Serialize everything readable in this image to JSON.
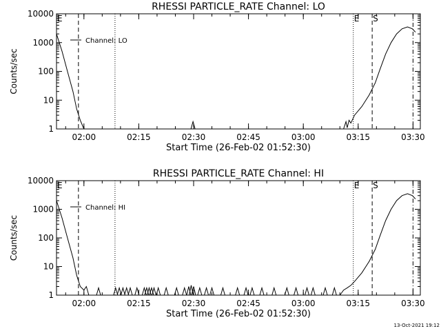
{
  "footer_timestamp": "13-Oct-2021 19:12",
  "colors": {
    "background": "#ffffff",
    "ink": "#000000"
  },
  "chart_data": [
    {
      "type": "line",
      "title": "RHESSI PARTICLE_RATE Channel: LO",
      "xlabel": "Start Time (26-Feb-02 01:52:30)",
      "ylabel": "Counts/sec",
      "y_scale": "log",
      "xlim": [
        "01:52:30",
        "03:32:00"
      ],
      "ylim": [
        1,
        10000
      ],
      "x_ticks": [
        "02:00",
        "02:15",
        "02:30",
        "02:45",
        "03:00",
        "03:15",
        "03:30"
      ],
      "y_ticks": [
        "1",
        "10",
        "100",
        "1000",
        "10000"
      ],
      "legend": {
        "label": "Channel: LO",
        "placement": "top-left"
      },
      "series": [
        {
          "name": "Channel: LO",
          "x": [
            "01:52:30",
            "01:54:00",
            "01:55:30",
            "01:57:00",
            "01:58:00",
            "01:59:00",
            "02:00:00",
            "03:11:00",
            "03:11:40",
            "03:12:00",
            "03:12:30",
            "03:13:00",
            "03:14:00",
            "03:16:00",
            "03:18:00",
            "03:19:40",
            "03:21:00",
            "03:22:30",
            "03:24:00",
            "03:25:30",
            "03:27:00",
            "03:28:30",
            "03:29:50",
            "03:30:40"
          ],
          "y": [
            2000,
            500,
            100,
            20,
            5,
            2,
            1,
            1,
            1.8,
            1.1,
            2,
            1.6,
            3,
            6,
            15,
            40,
            120,
            400,
            1000,
            2000,
            3000,
            3500,
            3000,
            2300
          ]
        }
      ],
      "markers": [
        {
          "label": "E",
          "time": "01:52:30",
          "style": "dashed"
        },
        {
          "label": "",
          "time": "01:58:30",
          "style": "dashed"
        },
        {
          "label": "",
          "time": "02:08:30",
          "style": "dotted"
        },
        {
          "label": "",
          "time": "02:29:50",
          "style": "spike",
          "value": 1.8
        },
        {
          "label": "E",
          "time": "03:13:40",
          "style": "dotted"
        },
        {
          "label": "S",
          "time": "03:18:50",
          "style": "dashed"
        },
        {
          "label": "",
          "time": "03:30:00",
          "style": "dash-dot"
        }
      ]
    },
    {
      "type": "line",
      "title": "RHESSI PARTICLE_RATE Channel: HI",
      "xlabel": "Start Time (26-Feb-02 01:52:30)",
      "ylabel": "Counts/sec",
      "y_scale": "log",
      "xlim": [
        "01:52:30",
        "03:32:00"
      ],
      "ylim": [
        1,
        10000
      ],
      "x_ticks": [
        "02:00",
        "02:15",
        "02:30",
        "02:45",
        "03:00",
        "03:15",
        "03:30"
      ],
      "y_ticks": [
        "1",
        "10",
        "100",
        "1000",
        "10000"
      ],
      "legend": {
        "label": "Channel: HI",
        "placement": "top-left"
      },
      "series": [
        {
          "name": "Channel: HI",
          "x": [
            "01:52:30",
            "01:54:00",
            "01:55:30",
            "01:57:00",
            "01:58:00",
            "01:59:00",
            "02:00:00",
            "02:00:40",
            "02:01:20",
            "03:10:00",
            "03:11:00",
            "03:12:00",
            "03:13:00",
            "03:14:00",
            "03:16:00",
            "03:18:00",
            "03:19:40",
            "03:21:00",
            "03:22:30",
            "03:24:00",
            "03:25:30",
            "03:27:00",
            "03:28:30",
            "03:29:50",
            "03:30:40"
          ],
          "y": [
            2000,
            500,
            100,
            20,
            5,
            2,
            1.5,
            2,
            1,
            1,
            1.5,
            1.8,
            2.2,
            3,
            6,
            15,
            40,
            120,
            400,
            1000,
            2000,
            3000,
            3500,
            3000,
            2300
          ]
        }
      ],
      "markers": [
        {
          "label": "E",
          "time": "01:52:30",
          "style": "dashed"
        },
        {
          "label": "",
          "time": "01:58:30",
          "style": "dashed"
        },
        {
          "label": "",
          "time": "02:08:30",
          "style": "dotted"
        },
        {
          "label": "E",
          "time": "03:13:40",
          "style": "dotted"
        },
        {
          "label": "S",
          "time": "03:18:50",
          "style": "dashed"
        },
        {
          "label": "",
          "time": "03:30:00",
          "style": "dash-dot"
        }
      ],
      "noise_spikes": {
        "times": [
          "02:04:00",
          "02:08:40",
          "02:09:40",
          "02:10:40",
          "02:11:40",
          "02:12:40",
          "02:14:30",
          "02:16:30",
          "02:17:10",
          "02:17:50",
          "02:18:30",
          "02:19:10",
          "02:20:20",
          "02:22:30",
          "02:25:20",
          "02:27:30",
          "02:28:40",
          "02:29:20",
          "02:30:00",
          "02:31:40",
          "02:33:30",
          "02:35:00",
          "02:38:00",
          "02:42:00",
          "02:44:20",
          "02:46:00",
          "02:48:40",
          "02:52:00",
          "02:55:30",
          "02:58:00",
          "03:01:00",
          "03:02:40",
          "03:06:00",
          "03:08:30"
        ],
        "values": [
          1.8,
          1.8,
          1.8,
          1.8,
          1.8,
          1.8,
          1.8,
          1.8,
          1.8,
          1.8,
          1.8,
          1.8,
          1.8,
          1.8,
          1.8,
          1.8,
          2.0,
          2.2,
          2.0,
          1.8,
          1.8,
          1.8,
          1.8,
          1.8,
          1.8,
          1.8,
          1.8,
          1.8,
          1.8,
          1.8,
          1.8,
          1.8,
          1.8,
          1.8
        ]
      }
    }
  ]
}
